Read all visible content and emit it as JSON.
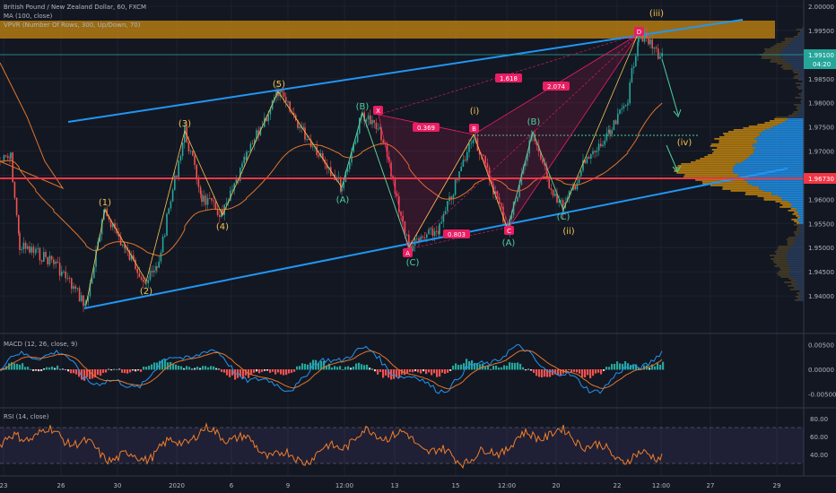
{
  "header": {
    "symbol_line": "British Pound / New Zealand Dollar, 60, FXCM",
    "ma_line": "MA (100, close)",
    "vpvr_line": "VPVR (Number Of Rows, 300, Up/Down, 70)"
  },
  "panes": {
    "macd_label": "MACD (12, 26, close, 9)",
    "rsi_label": "RSI (14, close)"
  },
  "colors": {
    "background": "#131722",
    "up_candle": "#26a69a",
    "down_candle": "#ef5350",
    "channel": "#2196f3",
    "ma": "#e0752d",
    "support": "#f23645",
    "wave_minor": "#f5c451",
    "wave_abc": "#4dd0a0",
    "harmonic": "#e91e63",
    "supply_zone": "#c8880f",
    "rsi": "#f07f2a",
    "rsi_band": "#7e57c2"
  },
  "x_axis": {
    "labels": [
      "23",
      "26",
      "30",
      "2020",
      "6",
      "9",
      "12:00",
      "13",
      "15",
      "12:00",
      "20",
      "22",
      "12:00",
      "27",
      "29"
    ]
  },
  "price_axis": {
    "ticks": [
      "2.00000",
      "1.99500",
      "1.99000",
      "1.98500",
      "1.98000",
      "1.97500",
      "1.97000",
      "1.96500",
      "1.96000",
      "1.95500",
      "1.95000",
      "1.94500",
      "1.94000"
    ],
    "current_price": "1.99100",
    "countdown": "04:20",
    "support_price": "1.96730"
  },
  "macd_axis": {
    "ticks": [
      "0.00500",
      "0.00000",
      "-0.00500"
    ]
  },
  "rsi_axis": {
    "ticks": [
      "80.00",
      "60.00",
      "40.00"
    ]
  },
  "waves": {
    "w1": "(1)",
    "w2": "(2)",
    "w3": "(3)",
    "w4": "(4)",
    "w5": "(5)",
    "B1": "(B)",
    "A1": "(A)",
    "C1": "(C)",
    "i": "(i)",
    "ii": "(ii)",
    "iii": "(iii)",
    "iv": "(iv)",
    "B2": "(B)",
    "A2": "(A)",
    "C2": "(C)"
  },
  "harmonic": {
    "points": [
      "X",
      "A",
      "B",
      "C",
      "D"
    ],
    "ratios": {
      "xab": "0.369",
      "abc": "0.803",
      "bcd": "1.618",
      "xad": "2.074"
    }
  },
  "chart_data": {
    "type": "candlestick",
    "title": "British Pound / New Zealand Dollar, 60, FXCM",
    "overlays": [
      "MA (100, close)",
      "VPVR (Number Of Rows, 300, Up/Down, 70)"
    ],
    "price_range": [
      1.935,
      2.0
    ],
    "key_levels": {
      "last_price": 1.991,
      "support_line": 1.9673,
      "supply_zone": [
        1.9945,
        1.9985
      ],
      "dotted_level": 1.9753
    },
    "wave_path": [
      {
        "label": "start",
        "price": 1.9425
      },
      {
        "label": "(1)",
        "price": 1.961
      },
      {
        "label": "(2)",
        "price": 1.947
      },
      {
        "label": "(3)",
        "price": 1.9765
      },
      {
        "label": "(4)",
        "price": 1.9595
      },
      {
        "label": "(5)",
        "price": 1.9835
      },
      {
        "label": "(A)",
        "price": 1.969
      },
      {
        "label": "(B)",
        "price": 1.979
      },
      {
        "label": "(C)",
        "price": 1.9545
      },
      {
        "label": "(i)",
        "price": 1.975
      },
      {
        "label": "(A)",
        "price": 1.9575
      },
      {
        "label": "(B)",
        "price": 1.9765
      },
      {
        "label": "(C)",
        "price": 1.9605
      },
      {
        "label": "(iii)",
        "price": 1.996
      },
      {
        "label": "(iv)",
        "price": 1.971
      }
    ],
    "macd_range": [
      -0.006,
      0.006
    ],
    "rsi_range": [
      20,
      90
    ],
    "rsi_bands": [
      70,
      30
    ]
  }
}
